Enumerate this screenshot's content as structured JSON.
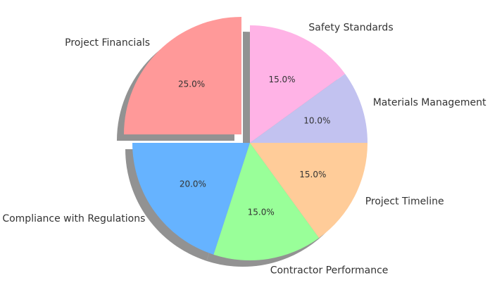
{
  "chart_data": {
    "type": "pie",
    "title": "",
    "categories": [
      "Project Financials",
      "Compliance with Regulations",
      "Contractor Performance",
      "Project Timeline",
      "Materials Management",
      "Safety Standards"
    ],
    "values": [
      25.0,
      20.0,
      15.0,
      15.0,
      10.0,
      15.0
    ],
    "value_labels": [
      "25.0%",
      "20.0%",
      "15.0%",
      "15.0%",
      "10.0%",
      "15.0%"
    ],
    "colors": [
      "#ff9999",
      "#66b3ff",
      "#99ff99",
      "#ffcc99",
      "#c2c2f0",
      "#ffb3e6"
    ],
    "exploded": [
      "Project Financials"
    ],
    "shadow": true,
    "start_angle_deg": 90,
    "direction": "counterclockwise",
    "legend": "none"
  }
}
